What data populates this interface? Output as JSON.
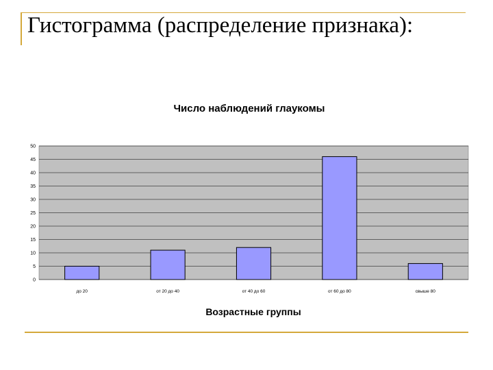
{
  "slide": {
    "title": "Гистограмма (распределение признака):"
  },
  "colors": {
    "accent_lines": "#d4a83a",
    "plot_background": "#c0c0c0",
    "bar_fill": "#9999ff",
    "bar_stroke": "#000000",
    "gridline": "#000000"
  },
  "chart_data": {
    "type": "bar",
    "title": "Число наблюдений глаукомы",
    "xlabel": "Возрастные группы",
    "ylabel": "",
    "categories": [
      "до 20",
      "от 20 до 40",
      "от 40 до 60",
      "от 60 до 80",
      "свыше 80"
    ],
    "values": [
      5,
      11,
      12,
      46,
      6
    ],
    "ylim": [
      0,
      50
    ],
    "yticks": [
      0,
      5,
      10,
      15,
      20,
      25,
      30,
      35,
      40,
      45,
      50
    ],
    "grid": true,
    "legend": "none"
  }
}
